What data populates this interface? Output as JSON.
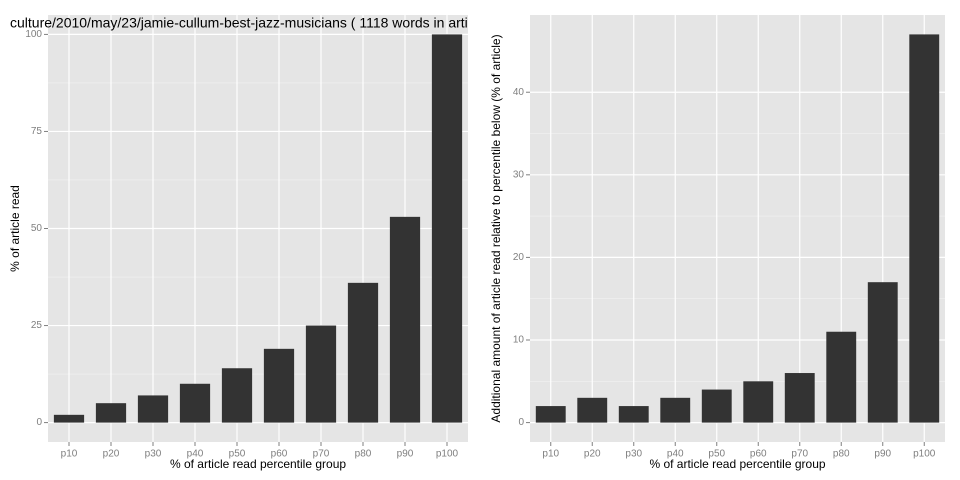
{
  "chart_data": [
    {
      "type": "bar",
      "title": "culture/2010/may/23/jamie-cullum-best-jazz-musicians ( 1118 words in arti",
      "x_label": "% of article read percentile group",
      "y_label": "% of article read",
      "categories": [
        "p10",
        "p20",
        "p30",
        "p40",
        "p50",
        "p60",
        "p70",
        "p80",
        "p90",
        "p100"
      ],
      "values": [
        2,
        5,
        7,
        10,
        14,
        19,
        25,
        36,
        53,
        100
      ],
      "color": "#333333",
      "ylim": [
        -5,
        105
      ],
      "yticks": [
        0,
        25,
        50,
        75,
        100
      ],
      "grid": true
    },
    {
      "type": "bar",
      "x_label": "% of article read percentile group",
      "y_label": "Additional amount of article read relative to percentile below (% of article)",
      "categories": [
        "p10",
        "p20",
        "p30",
        "p40",
        "p50",
        "p60",
        "p70",
        "p80",
        "p90",
        "p100"
      ],
      "values": [
        2,
        3,
        2,
        3,
        4,
        5,
        6,
        11,
        17,
        47
      ],
      "color": "#333333",
      "ylim": [
        -2.35,
        49.35
      ],
      "yticks": [
        0,
        10,
        20,
        30,
        40
      ],
      "grid": true
    }
  ]
}
